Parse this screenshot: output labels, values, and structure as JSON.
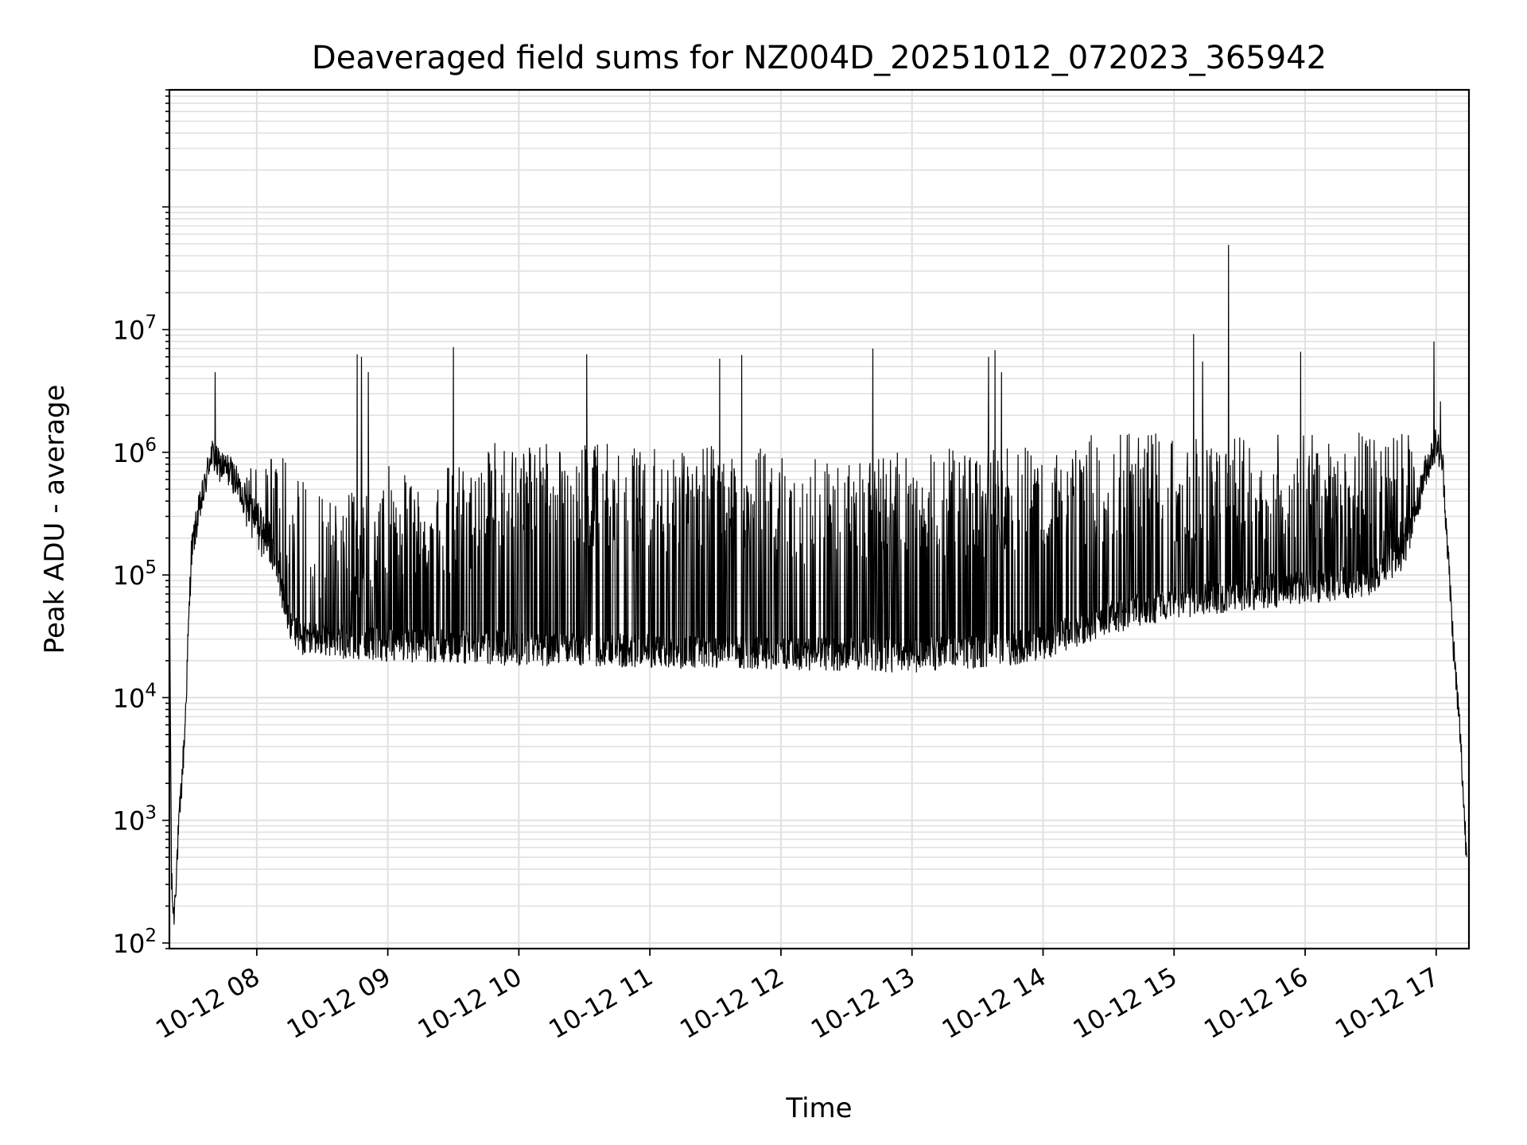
{
  "chart_data": {
    "type": "line",
    "title": "Deaveraged field sums for NZ004D_20251012_072023_365942",
    "xlabel": "Time",
    "ylabel": "Peak ADU - average",
    "y_scale": "log",
    "x_range": [
      "2025-10-12 07:20",
      "2025-10-12 17:15"
    ],
    "ylim": [
      90,
      900000000
    ],
    "grid": true,
    "x_ticks": [
      {
        "value": "2025-10-12 08:00",
        "label": "10-12 08"
      },
      {
        "value": "2025-10-12 09:00",
        "label": "10-12 09"
      },
      {
        "value": "2025-10-12 10:00",
        "label": "10-12 10"
      },
      {
        "value": "2025-10-12 11:00",
        "label": "10-12 11"
      },
      {
        "value": "2025-10-12 12:00",
        "label": "10-12 12"
      },
      {
        "value": "2025-10-12 13:00",
        "label": "10-12 13"
      },
      {
        "value": "2025-10-12 14:00",
        "label": "10-12 14"
      },
      {
        "value": "2025-10-12 15:00",
        "label": "10-12 15"
      },
      {
        "value": "2025-10-12 16:00",
        "label": "10-12 16"
      },
      {
        "value": "2025-10-12 17:00",
        "label": "10-12 17"
      }
    ],
    "y_ticks": [
      {
        "value": 100,
        "base": "10",
        "exp": "2"
      },
      {
        "value": 1000,
        "base": "10",
        "exp": "3"
      },
      {
        "value": 10000,
        "base": "10",
        "exp": "4"
      },
      {
        "value": 100000,
        "base": "10",
        "exp": "5"
      },
      {
        "value": 1000000,
        "base": "10",
        "exp": "6"
      },
      {
        "value": 10000000,
        "base": "10",
        "exp": "7"
      }
    ],
    "series": [
      {
        "color": "#000000",
        "baseline": [
          {
            "x": "2025-10-12 07:20",
            "y": 100000
          },
          {
            "x": "2025-10-12 07:21",
            "y": 300
          },
          {
            "x": "2025-10-12 07:22",
            "y": 160
          },
          {
            "x": "2025-10-12 07:24",
            "y": 700
          },
          {
            "x": "2025-10-12 07:27",
            "y": 5000
          },
          {
            "x": "2025-10-12 07:30",
            "y": 150000
          },
          {
            "x": "2025-10-12 07:33",
            "y": 300000
          },
          {
            "x": "2025-10-12 07:36",
            "y": 500000
          },
          {
            "x": "2025-10-12 07:39",
            "y": 1000000
          },
          {
            "x": "2025-10-12 07:42",
            "y": 800000
          },
          {
            "x": "2025-10-12 07:48",
            "y": 700000
          },
          {
            "x": "2025-10-12 07:55",
            "y": 400000
          },
          {
            "x": "2025-10-12 08:00",
            "y": 300000
          },
          {
            "x": "2025-10-12 08:05",
            "y": 200000
          },
          {
            "x": "2025-10-12 08:10",
            "y": 100000
          },
          {
            "x": "2025-10-12 08:15",
            "y": 40000
          },
          {
            "x": "2025-10-12 08:20",
            "y": 30000
          },
          {
            "x": "2025-10-12 09:00",
            "y": 27000
          },
          {
            "x": "2025-10-12 10:00",
            "y": 25000
          },
          {
            "x": "2025-10-12 11:00",
            "y": 24000
          },
          {
            "x": "2025-10-12 12:00",
            "y": 23000
          },
          {
            "x": "2025-10-12 13:00",
            "y": 22000
          },
          {
            "x": "2025-10-12 13:45",
            "y": 25000
          },
          {
            "x": "2025-10-12 14:00",
            "y": 28000
          },
          {
            "x": "2025-10-12 14:30",
            "y": 45000
          },
          {
            "x": "2025-10-12 15:00",
            "y": 60000
          },
          {
            "x": "2025-10-12 15:30",
            "y": 70000
          },
          {
            "x": "2025-10-12 16:00",
            "y": 80000
          },
          {
            "x": "2025-10-12 16:30",
            "y": 90000
          },
          {
            "x": "2025-10-12 16:45",
            "y": 150000
          },
          {
            "x": "2025-10-12 16:50",
            "y": 300000
          },
          {
            "x": "2025-10-12 16:55",
            "y": 700000
          },
          {
            "x": "2025-10-12 17:00",
            "y": 1200000
          },
          {
            "x": "2025-10-12 17:03",
            "y": 800000
          },
          {
            "x": "2025-10-12 17:05",
            "y": 200000
          },
          {
            "x": "2025-10-12 17:08",
            "y": 25000
          },
          {
            "x": "2025-10-12 17:11",
            "y": 5000
          },
          {
            "x": "2025-10-12 17:13",
            "y": 1000
          },
          {
            "x": "2025-10-12 17:14",
            "y": 500
          }
        ],
        "burst_ranges": [
          {
            "start": "2025-10-12 07:55",
            "end": "2025-10-12 08:25",
            "max_y": 900000
          },
          {
            "start": "2025-10-12 08:25",
            "end": "2025-10-12 09:00",
            "max_y": 500000
          },
          {
            "start": "2025-10-12 09:00",
            "end": "2025-10-12 09:45",
            "max_y": 800000
          },
          {
            "start": "2025-10-12 09:45",
            "end": "2025-10-12 11:55",
            "max_y": 1200000
          },
          {
            "start": "2025-10-12 11:55",
            "end": "2025-10-12 12:50",
            "max_y": 900000
          },
          {
            "start": "2025-10-12 12:50",
            "end": "2025-10-12 14:20",
            "max_y": 1100000
          },
          {
            "start": "2025-10-12 14:20",
            "end": "2025-10-12 16:50",
            "max_y": 1450000
          }
        ],
        "spikes": [
          {
            "x": "2025-10-12 07:41",
            "y": 4500000
          },
          {
            "x": "2025-10-12 08:46",
            "y": 6300000
          },
          {
            "x": "2025-10-12 08:48",
            "y": 6000000
          },
          {
            "x": "2025-10-12 08:51",
            "y": 4500000
          },
          {
            "x": "2025-10-12 09:30",
            "y": 7200000
          },
          {
            "x": "2025-10-12 10:31",
            "y": 6300000
          },
          {
            "x": "2025-10-12 11:32",
            "y": 5800000
          },
          {
            "x": "2025-10-12 11:42",
            "y": 6200000
          },
          {
            "x": "2025-10-12 12:42",
            "y": 7000000
          },
          {
            "x": "2025-10-12 13:35",
            "y": 6000000
          },
          {
            "x": "2025-10-12 13:38",
            "y": 6800000
          },
          {
            "x": "2025-10-12 13:41",
            "y": 4500000
          },
          {
            "x": "2025-10-12 15:09",
            "y": 9200000
          },
          {
            "x": "2025-10-12 15:13",
            "y": 5500000
          },
          {
            "x": "2025-10-12 15:25",
            "y": 49000000
          },
          {
            "x": "2025-10-12 15:58",
            "y": 6600000
          },
          {
            "x": "2025-10-12 16:59",
            "y": 8000000
          },
          {
            "x": "2025-10-12 17:02",
            "y": 2600000
          }
        ]
      }
    ]
  },
  "colors": {
    "line": "#000000",
    "grid": "#e0e0e0",
    "axis": "#000000",
    "background": "#ffffff"
  }
}
